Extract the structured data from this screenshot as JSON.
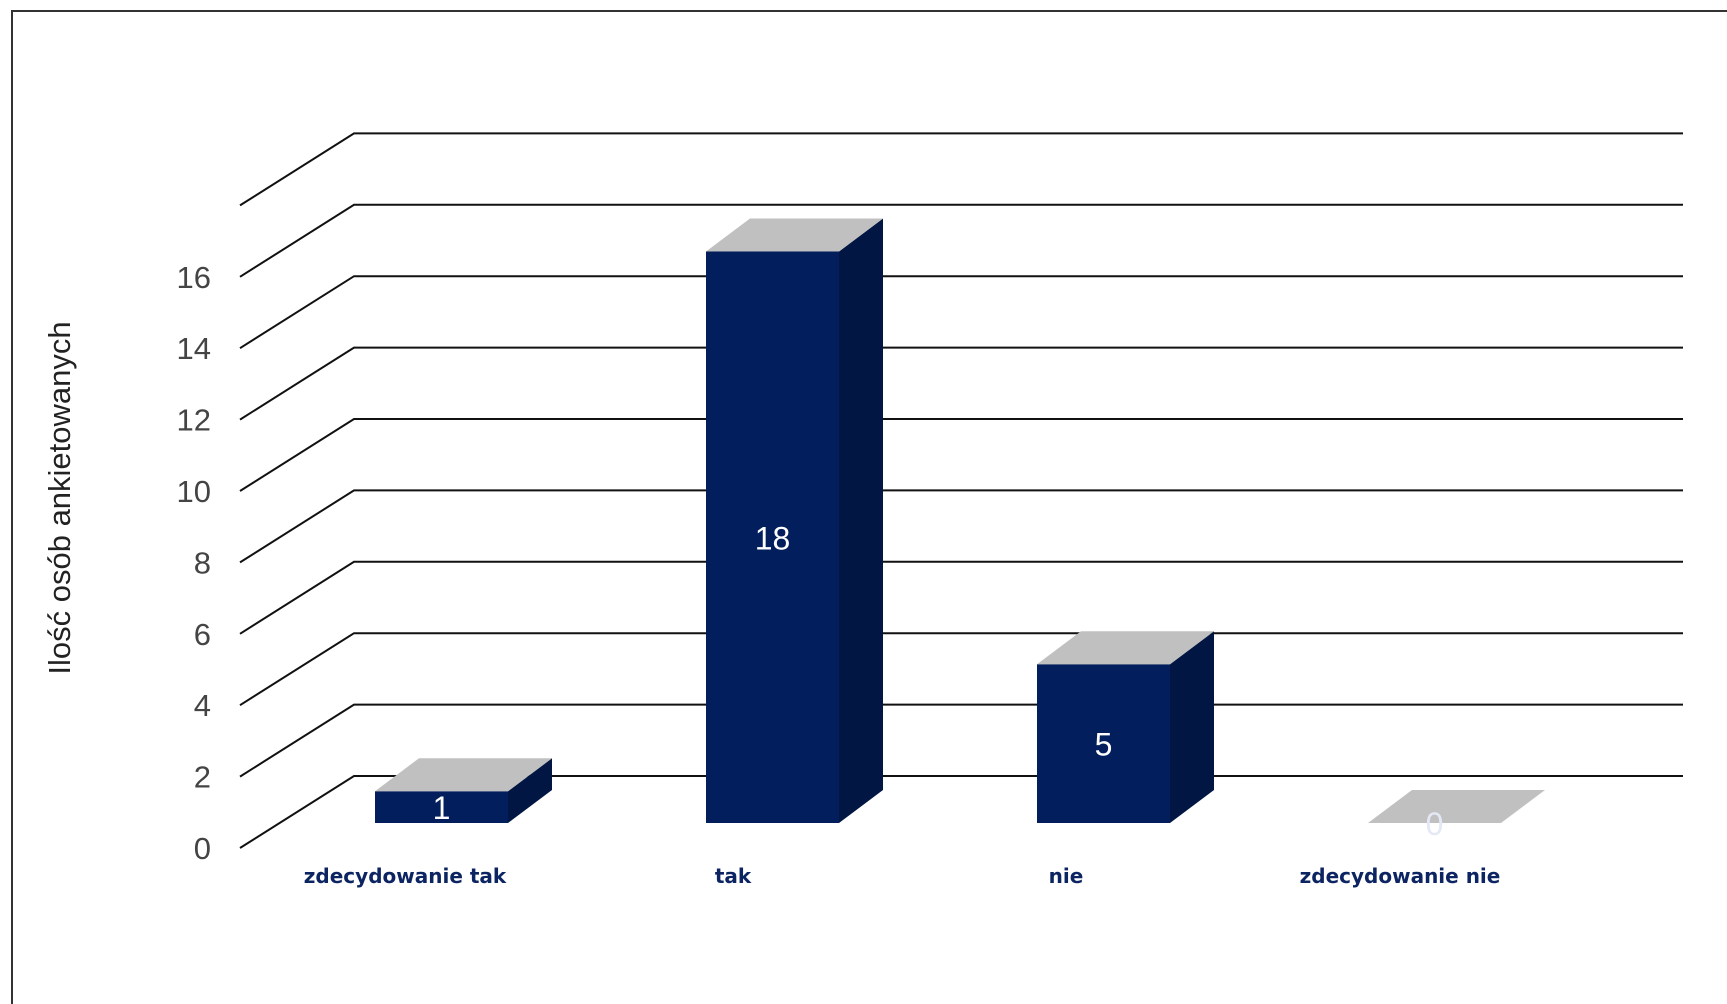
{
  "chart_data": {
    "type": "bar",
    "title": "",
    "xlabel": "",
    "ylabel": "Ilość osób ankietowanych",
    "categories": [
      "zdecydowanie tak",
      "tak",
      "nie",
      "zdecydowanie nie"
    ],
    "values": [
      1,
      18,
      5,
      0
    ],
    "value_labels": [
      "1",
      "18",
      "5",
      "0"
    ],
    "yticks": [
      "0",
      "2",
      "4",
      "6",
      "8",
      "10",
      "12",
      "14",
      "16"
    ],
    "ylim": [
      0,
      18
    ],
    "grid": true,
    "legend": "none",
    "style": "3d",
    "colors": {
      "front": "#021e5c",
      "side": "#011642",
      "top": "#c0c0c0",
      "category_text": "#0c2461",
      "gridline": "#111111"
    }
  }
}
